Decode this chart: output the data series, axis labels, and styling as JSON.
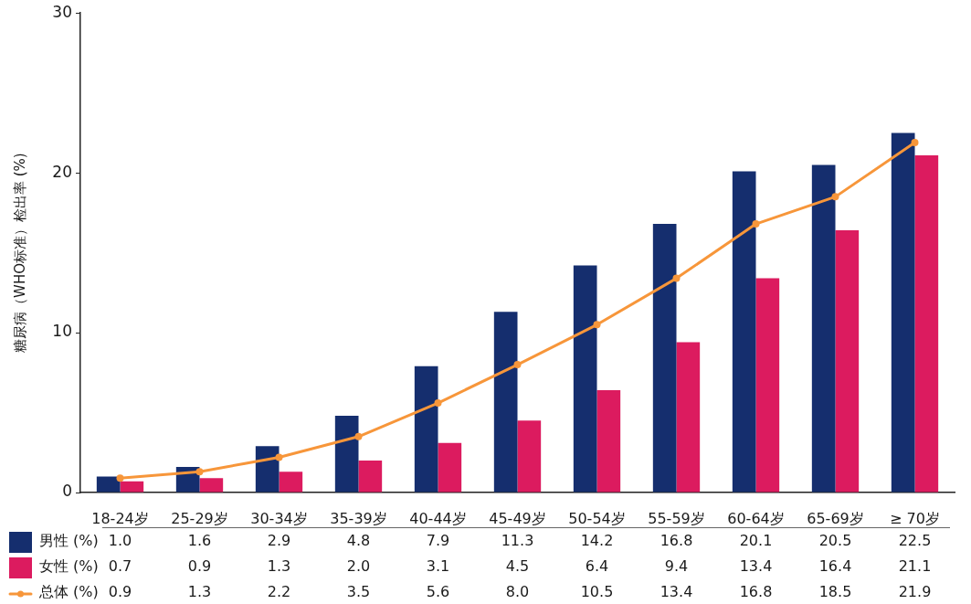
{
  "chart_data": {
    "type": "bar",
    "ylabel": "糖尿病（WHO标准）检出率 (%)",
    "categories": [
      "18-24岁",
      "25-29岁",
      "30-34岁",
      "35-39岁",
      "40-44岁",
      "45-49岁",
      "50-54岁",
      "55-59岁",
      "60-64岁",
      "65-69岁",
      "≥ 70岁"
    ],
    "ylim": [
      0,
      30
    ],
    "yticks": [
      0,
      10,
      20,
      30
    ],
    "legend": "bottom left",
    "series": [
      {
        "name": "男性 (%)",
        "color": "#152e6e",
        "values": [
          1.0,
          1.6,
          2.9,
          4.8,
          7.9,
          11.3,
          14.2,
          16.8,
          20.1,
          20.5,
          22.5
        ],
        "value_labels": [
          "1.0",
          "1.6",
          "2.9",
          "4.8",
          "7.9",
          "11.3",
          "14.2",
          "16.8",
          "20.1",
          "20.5",
          "22.5"
        ]
      },
      {
        "name": "女性 (%)",
        "color": "#dc1b5f",
        "values": [
          0.7,
          0.9,
          1.3,
          2.0,
          3.1,
          4.5,
          6.4,
          9.4,
          13.4,
          16.4,
          21.1
        ],
        "value_labels": [
          "0.7",
          "0.9",
          "1.3",
          "2.0",
          "3.1",
          "4.5",
          "6.4",
          "9.4",
          "13.4",
          "16.4",
          "21.1"
        ]
      },
      {
        "name": "总体 (%)",
        "type": "line",
        "marker": "circle",
        "color": "#f7963a",
        "values": [
          0.9,
          1.3,
          2.2,
          3.5,
          5.6,
          8.0,
          10.5,
          13.4,
          16.8,
          18.5,
          21.9
        ],
        "value_labels": [
          "0.9",
          "1.3",
          "2.2",
          "3.5",
          "5.6",
          "8.0",
          "10.5",
          "13.4",
          "16.8",
          "18.5",
          "21.9"
        ]
      }
    ]
  }
}
